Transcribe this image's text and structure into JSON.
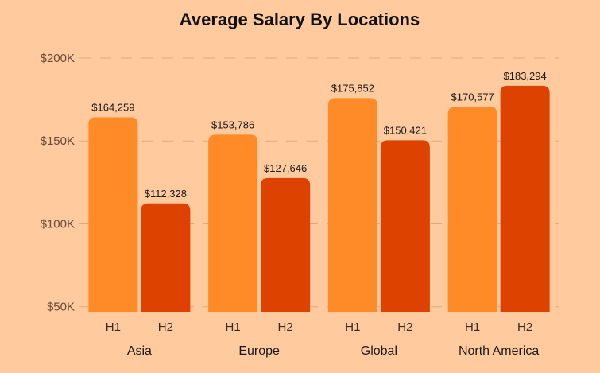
{
  "chart_data": {
    "type": "bar",
    "title": "Average Salary By Locations",
    "xlabel": "",
    "ylabel": "",
    "categories": [
      "Asia",
      "Europe",
      "Global",
      "North America"
    ],
    "subcategories": [
      "H1",
      "H2"
    ],
    "yticks": [
      50000,
      100000,
      150000,
      200000
    ],
    "ytick_labels": [
      "$50K",
      "$100K",
      "$150K",
      "$200K"
    ],
    "ylim": [
      47000,
      200000
    ],
    "grid": true,
    "legend": "none",
    "colors": {
      "H1": "#FF8A28",
      "H2": "#DD4200"
    },
    "bars": [
      {
        "category": "Asia",
        "sub": "H1",
        "value": 164259,
        "label": "$164,259"
      },
      {
        "category": "Asia",
        "sub": "H2",
        "value": 112328,
        "label": "$112,328"
      },
      {
        "category": "Europe",
        "sub": "H1",
        "value": 153786,
        "label": "$153,786"
      },
      {
        "category": "Europe",
        "sub": "H2",
        "value": 127646,
        "label": "$127,646"
      },
      {
        "category": "Global",
        "sub": "H1",
        "value": 175852,
        "label": "$175,852"
      },
      {
        "category": "Global",
        "sub": "H2",
        "value": 150421,
        "label": "$150,421"
      },
      {
        "category": "North America",
        "sub": "H1",
        "value": 170577,
        "label": "$170,577"
      },
      {
        "category": "North America",
        "sub": "H2",
        "value": 183294,
        "label": "$183,294"
      }
    ]
  }
}
